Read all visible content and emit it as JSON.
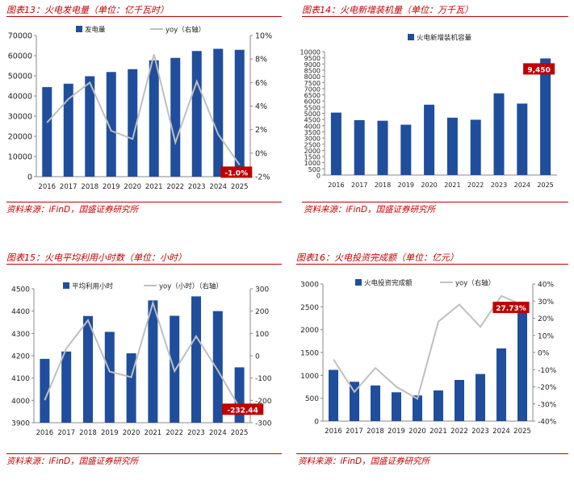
{
  "panels": [
    {
      "title": "图表13：火电发电量（单位：亿千瓦时）",
      "source": "资料来源：iFinD，国盛证券研究所"
    },
    {
      "title": "图表14：火电新增装机量（单位：万千瓦）",
      "source": "资料来源：iFinD，国盛证券研究所"
    },
    {
      "title": "图表15：火电平均利用小时数（单位：小时）",
      "source": "资料来源：iFinD，国盛证券研究所"
    },
    {
      "title": "图表16：火电投资完成额（单位：亿元）",
      "source": "资料来源：iFinD，国盛证券研究所"
    }
  ],
  "colors": {
    "bar": "#1f4e9c",
    "line": "#bfbfbf",
    "accent": "#c00000",
    "axis": "#888888"
  },
  "chart_data": [
    {
      "type": "bar",
      "title": "图表13：火电发电量（单位：亿千瓦时）",
      "categories": [
        "2016",
        "2017",
        "2018",
        "2019",
        "2020",
        "2021",
        "2022",
        "2023",
        "2024",
        "2025"
      ],
      "series": [
        {
          "name": "发电量",
          "type": "bar",
          "axis": "left",
          "values": [
            44400,
            46100,
            49800,
            51900,
            53300,
            57700,
            58900,
            62300,
            63400,
            62900
          ]
        },
        {
          "name": "yoy（右轴）",
          "type": "line",
          "axis": "right",
          "values": [
            2.6,
            4.6,
            6.0,
            1.9,
            1.2,
            8.4,
            0.9,
            6.1,
            1.6,
            -1.0
          ]
        }
      ],
      "ylim": [
        0,
        70000
      ],
      "yticks": [
        0,
        10000,
        20000,
        30000,
        40000,
        50000,
        60000,
        70000
      ],
      "y2lim": [
        -2,
        10
      ],
      "y2ticks": [
        "-2%",
        "0%",
        "2%",
        "4%",
        "6%",
        "8%",
        "10%"
      ],
      "annotation": "-1.0%",
      "legend_placement": "top"
    },
    {
      "type": "bar",
      "title": "图表14：火电新增装机量（单位：万千瓦）",
      "categories": [
        "2016",
        "2017",
        "2018",
        "2019",
        "2020",
        "2021",
        "2022",
        "2023",
        "2024",
        "2025"
      ],
      "series": [
        {
          "name": "火电新增装机容量",
          "type": "bar",
          "axis": "left",
          "values": [
            5060,
            4450,
            4400,
            4080,
            5700,
            4650,
            4480,
            6620,
            5790,
            9450
          ]
        }
      ],
      "ylim": [
        0,
        10000
      ],
      "yticks": [
        0,
        500,
        1000,
        1500,
        2000,
        2500,
        3000,
        3500,
        4000,
        4500,
        5000,
        5500,
        6000,
        6500,
        7000,
        7500,
        8000,
        8500,
        9000,
        9500,
        10000
      ],
      "annotation": "9,450",
      "legend_placement": "top"
    },
    {
      "type": "bar",
      "title": "图表15：火电平均利用小时数（单位：小时）",
      "categories": [
        "2016",
        "2017",
        "2018",
        "2019",
        "2020",
        "2021",
        "2022",
        "2023",
        "2024",
        "2025"
      ],
      "series": [
        {
          "name": "平均利用小时",
          "type": "bar",
          "axis": "left",
          "values": [
            4186,
            4219,
            4378,
            4307,
            4211,
            4448,
            4379,
            4466,
            4400,
            4148
          ]
        },
        {
          "name": "yoy（小时）（右轴）",
          "type": "line",
          "axis": "right",
          "values": [
            -199,
            33,
            159,
            -71,
            -96,
            237,
            -69,
            87,
            -66,
            -232.44
          ]
        }
      ],
      "ylim": [
        3900,
        4500
      ],
      "yticks": [
        3900,
        4000,
        4100,
        4200,
        4300,
        4400,
        4500
      ],
      "y2lim": [
        -300,
        300
      ],
      "y2ticks": [
        "-300",
        "-200",
        "-100",
        "0",
        "100",
        "200",
        "300"
      ],
      "annotation": "-232.44",
      "legend_placement": "top"
    },
    {
      "type": "bar",
      "title": "图表16：火电投资完成额（单位：亿元）",
      "categories": [
        "2016",
        "2017",
        "2018",
        "2019",
        "2020",
        "2021",
        "2022",
        "2023",
        "2024",
        "2025"
      ],
      "series": [
        {
          "name": "火电投资完成额",
          "type": "bar",
          "axis": "left",
          "values": [
            1120,
            860,
            780,
            630,
            560,
            670,
            900,
            1030,
            1590,
            2400
          ]
        },
        {
          "name": "yoy（右轴）",
          "type": "line",
          "axis": "right",
          "values": [
            -4,
            -23,
            -9,
            -20,
            -27,
            18,
            28,
            15,
            33,
            27.73
          ]
        }
      ],
      "ylim": [
        0,
        3000
      ],
      "yticks": [
        0,
        500,
        1000,
        1500,
        2000,
        2500,
        3000
      ],
      "y2lim": [
        -40,
        40
      ],
      "y2ticks": [
        "-40%",
        "-30%",
        "-20%",
        "-10%",
        "0%",
        "10%",
        "20%",
        "30%",
        "40%"
      ],
      "annotation": "27.73%",
      "legend_placement": "top"
    }
  ]
}
